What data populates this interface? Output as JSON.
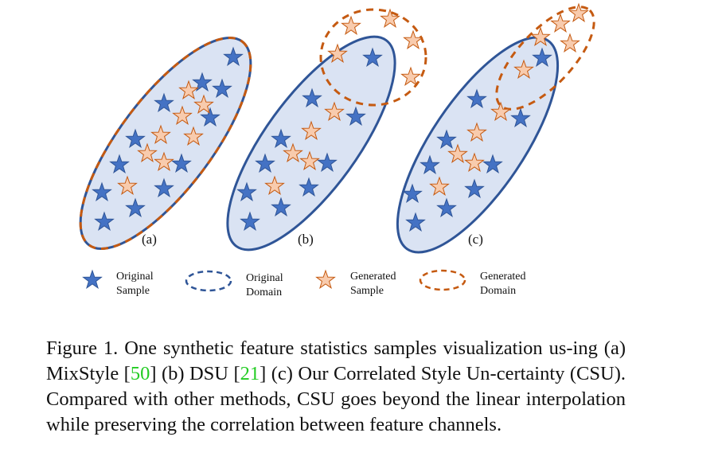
{
  "figure": {
    "panels": [
      {
        "label": "(a)"
      },
      {
        "label": "(b)"
      },
      {
        "label": "(c)"
      }
    ],
    "legend": [
      {
        "line1": "Original",
        "line2": "Sample"
      },
      {
        "line1": "Original",
        "line2": "Domain"
      },
      {
        "line1": "Generated",
        "line2": "Sample"
      },
      {
        "line1": "Generated",
        "line2": "Domain"
      }
    ]
  },
  "caption": {
    "part1": "Figure 1. One synthetic feature statistics samples visualization us-ing (a) MixStyle [",
    "cite1": "50",
    "part2": "] (b) DSU  [",
    "cite2": "21",
    "part3": "] (c) Our Correlated Style Un-certainty (CSU). Compared with other methods, CSU goes beyond the linear interpolation while preserving the correlation between feature channels."
  },
  "colors": {
    "original_fill": "#4472c4",
    "original_stroke": "#2f5597",
    "generated_fill": "#f8cbad",
    "generated_stroke": "#c55a11",
    "domain_fill": "#dae3f3",
    "citation": "#22cc22"
  }
}
